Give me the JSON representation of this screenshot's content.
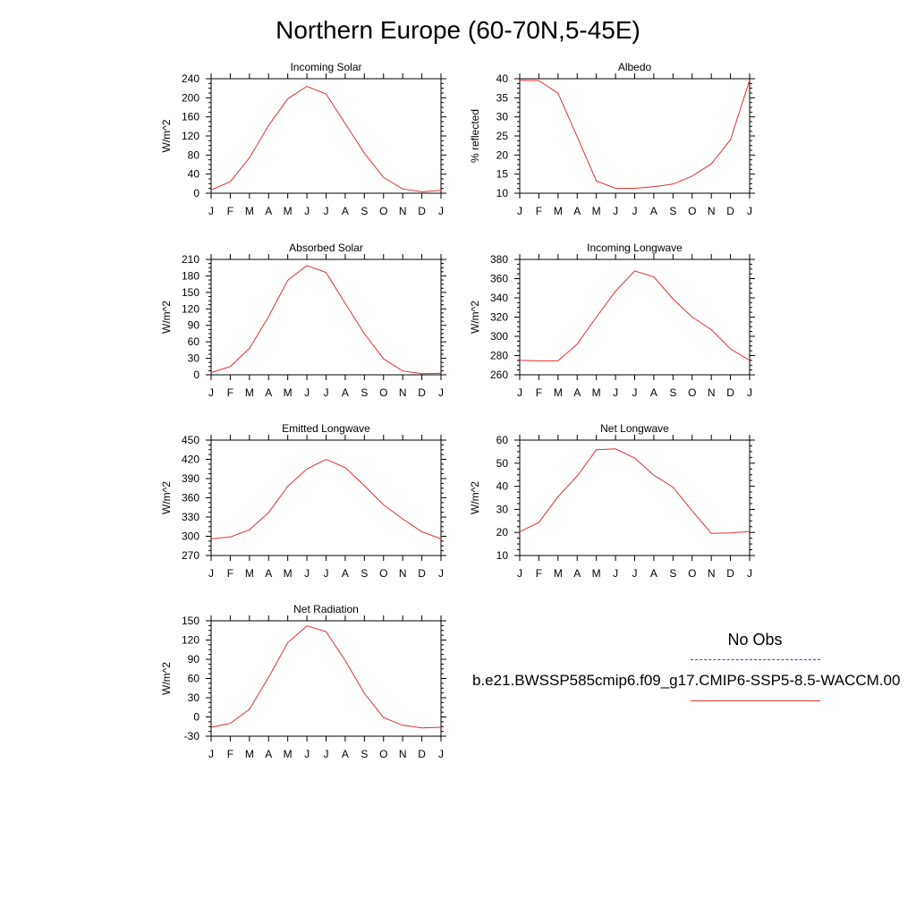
{
  "title": "Northern Europe (60-70N,5-45E)",
  "legend": {
    "obs_label": "No Obs",
    "model_label": "b.e21.BWSSP585cmip6.f09_g17.CMIP6-SSP5-8.5-WACCM.00",
    "obs_color": "#3a3ad6",
    "model_color": "#e03030"
  },
  "chart_data": [
    {
      "type": "line",
      "title": "Incoming Solar",
      "ylabel": "W/m^2",
      "categories": [
        "J",
        "F",
        "M",
        "A",
        "M",
        "J",
        "J",
        "A",
        "S",
        "O",
        "N",
        "D",
        "J"
      ],
      "ylim": [
        0,
        240
      ],
      "yticks": [
        0,
        40,
        80,
        120,
        160,
        200,
        240
      ],
      "series": [
        {
          "values": [
            7,
            24,
            74,
            142,
            198,
            224,
            208,
            146,
            84,
            33,
            9,
            3,
            6
          ]
        }
      ]
    },
    {
      "type": "line",
      "title": "Albedo",
      "ylabel": "% reflected",
      "categories": [
        "J",
        "F",
        "M",
        "A",
        "M",
        "J",
        "J",
        "A",
        "S",
        "O",
        "N",
        "D",
        "J"
      ],
      "ylim": [
        10,
        40
      ],
      "yticks": [
        10,
        15,
        20,
        25,
        30,
        35,
        40
      ],
      "series": [
        {
          "values": [
            39.6,
            39.5,
            36.2,
            24.8,
            13.2,
            11.3,
            11.3,
            11.7,
            12.4,
            14.5,
            17.7,
            24.0,
            39.6
          ]
        }
      ]
    },
    {
      "type": "line",
      "title": "Absorbed Solar",
      "ylabel": "W/m^2",
      "categories": [
        "J",
        "F",
        "M",
        "A",
        "M",
        "J",
        "J",
        "A",
        "S",
        "O",
        "N",
        "D",
        "J"
      ],
      "ylim": [
        0,
        210
      ],
      "yticks": [
        0,
        30,
        60,
        90,
        120,
        150,
        180,
        210
      ],
      "series": [
        {
          "values": [
            4,
            15,
            48,
            106,
            172,
            199,
            186,
            130,
            75,
            29,
            7,
            2,
            3
          ]
        }
      ]
    },
    {
      "type": "line",
      "title": "Incoming Longwave",
      "ylabel": "W/m^2",
      "categories": [
        "J",
        "F",
        "M",
        "A",
        "M",
        "J",
        "J",
        "A",
        "S",
        "O",
        "N",
        "D",
        "J"
      ],
      "ylim": [
        260,
        380
      ],
      "yticks": [
        260,
        280,
        300,
        320,
        340,
        360,
        380
      ],
      "series": [
        {
          "values": [
            275,
            274.5,
            274.5,
            292,
            320,
            347,
            368,
            362,
            339,
            320,
            307,
            287,
            275
          ]
        }
      ]
    },
    {
      "type": "line",
      "title": "Emitted Longwave",
      "ylabel": "W/m^2",
      "categories": [
        "J",
        "F",
        "M",
        "A",
        "M",
        "J",
        "J",
        "A",
        "S",
        "O",
        "N",
        "D",
        "J"
      ],
      "ylim": [
        270,
        450
      ],
      "yticks": [
        270,
        300,
        330,
        360,
        390,
        420,
        450
      ],
      "series": [
        {
          "values": [
            296,
            299,
            310,
            337,
            378,
            405,
            420,
            407,
            379,
            349,
            327,
            307,
            296
          ]
        }
      ]
    },
    {
      "type": "line",
      "title": "Net Longwave",
      "ylabel": "W/m^2",
      "categories": [
        "J",
        "F",
        "M",
        "A",
        "M",
        "J",
        "J",
        "A",
        "S",
        "O",
        "N",
        "D",
        "J"
      ],
      "ylim": [
        10,
        60
      ],
      "yticks": [
        10,
        20,
        30,
        40,
        50,
        60
      ],
      "series": [
        {
          "values": [
            20.3,
            24.3,
            35.5,
            44.5,
            55.8,
            56.2,
            52.2,
            44.8,
            39.6,
            29.3,
            19.6,
            19.8,
            20.4
          ]
        }
      ]
    },
    {
      "type": "line",
      "title": "Net Radiation",
      "ylabel": "W/m^2",
      "categories": [
        "J",
        "F",
        "M",
        "A",
        "M",
        "J",
        "J",
        "A",
        "S",
        "O",
        "N",
        "D",
        "J"
      ],
      "ylim": [
        -30,
        150
      ],
      "yticks": [
        -30,
        0,
        30,
        60,
        90,
        120,
        150
      ],
      "series": [
        {
          "values": [
            -16,
            -10,
            12,
            62,
            116,
            142,
            133,
            88,
            37,
            -1,
            -13,
            -17,
            -16
          ]
        }
      ]
    }
  ]
}
